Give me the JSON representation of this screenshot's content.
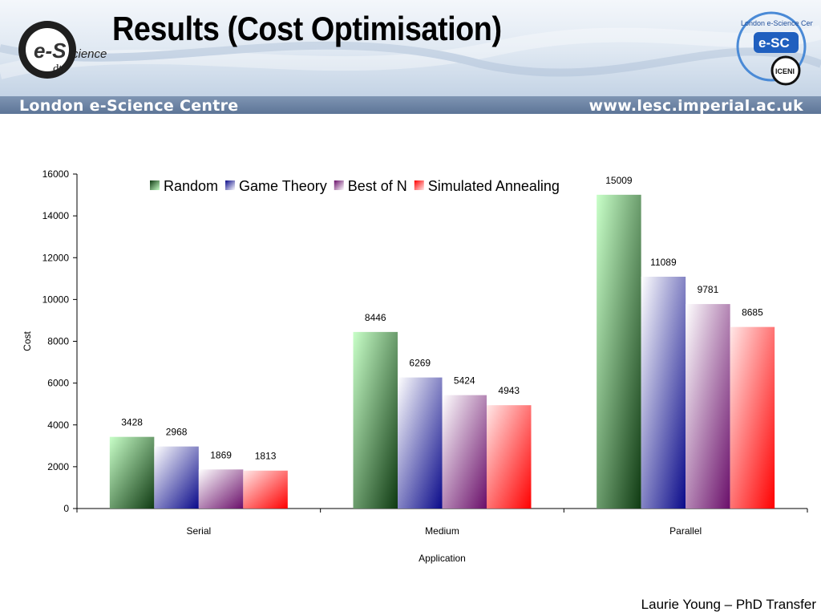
{
  "slide": {
    "title": "Results (Cost Optimisation)",
    "banner_left": "London e-Science Centre",
    "banner_right": "www.lesc.imperial.ac.uk",
    "logo_left_main": "e-S",
    "logo_left_suffix": "cience",
    "logo_left_sub": "dti",
    "logo_right_main": "e-SC",
    "logo_right_arc": "London e-Science Centre",
    "logo_right_badge": "ICENI",
    "footer": "Laurie Young – PhD Transfer"
  },
  "chart_data": {
    "type": "bar",
    "categories": [
      "Serial",
      "Medium",
      "Parallel"
    ],
    "series": [
      {
        "name": "Random",
        "values": [
          3428,
          8446,
          15009
        ],
        "color_dark": "#0f3a12",
        "color_light": "#c8ffc8"
      },
      {
        "name": "Game Theory",
        "values": [
          2968,
          6269,
          11089
        ],
        "color_dark": "#0a0a8a",
        "color_light": "#ffffff"
      },
      {
        "name": "Best of N",
        "values": [
          1869,
          5424,
          9781
        ],
        "color_dark": "#6a0f6a",
        "color_light": "#ffffff"
      },
      {
        "name": "Simulated Annealing",
        "values": [
          1813,
          4943,
          8685
        ],
        "color_dark": "#ff0000",
        "color_light": "#ffe8e8"
      }
    ],
    "xlabel": "Application",
    "ylabel": "Cost",
    "ylim": [
      0,
      16000
    ],
    "yticks": [
      0,
      2000,
      4000,
      6000,
      8000,
      10000,
      12000,
      14000,
      16000
    ],
    "legend_position": "top",
    "grid": false
  }
}
